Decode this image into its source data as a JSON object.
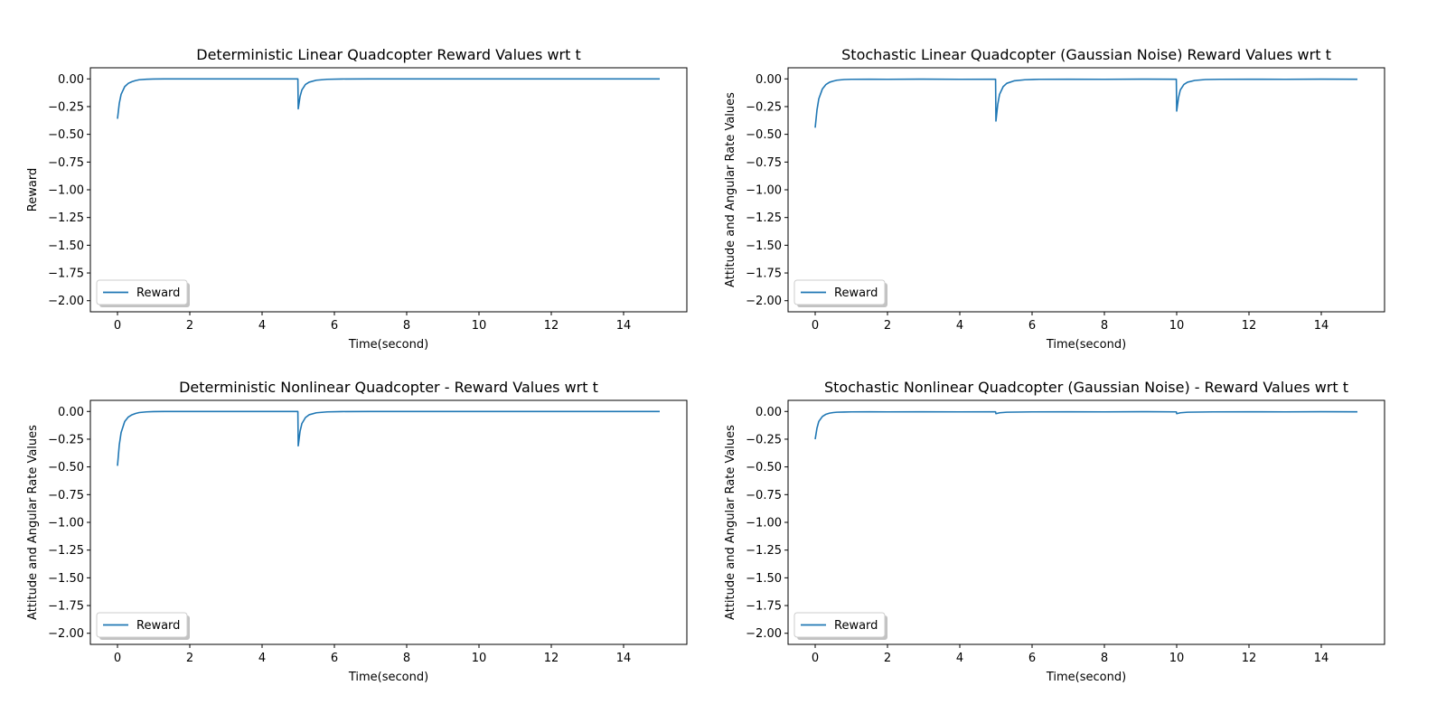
{
  "chart_data": [
    {
      "type": "line",
      "title": "Deterministic Linear Quadcopter Reward Values wrt t",
      "xlabel": "Time(second)",
      "ylabel": "Reward",
      "xlim": [
        -0.75,
        15.75
      ],
      "ylim": [
        -2.1,
        0.1
      ],
      "xticks": [
        "0",
        "2",
        "4",
        "6",
        "8",
        "10",
        "12",
        "14"
      ],
      "yticks": [
        "0.00",
        "−0.25",
        "−0.50",
        "−0.75",
        "−1.00",
        "−1.25",
        "−1.50",
        "−1.75",
        "−2.00"
      ],
      "legend": {
        "position": "lower left",
        "entries": [
          "Reward"
        ]
      },
      "grid": false,
      "series": [
        {
          "name": "Reward",
          "color": "#1f77b4",
          "x": [
            0,
            0.05,
            0.1,
            0.2,
            0.3,
            0.4,
            0.5,
            0.6,
            0.8,
            1.0,
            1.3,
            2.0,
            4.99,
            5.0,
            5.05,
            5.1,
            5.2,
            5.3,
            5.5,
            5.8,
            6.2,
            7.0,
            10.0,
            15.0
          ],
          "y": [
            -0.36,
            -0.22,
            -0.14,
            -0.07,
            -0.04,
            -0.025,
            -0.015,
            -0.008,
            -0.003,
            -0.001,
            0,
            0,
            0,
            -0.27,
            -0.16,
            -0.1,
            -0.05,
            -0.03,
            -0.012,
            -0.004,
            -0.001,
            0,
            0,
            0
          ]
        }
      ]
    },
    {
      "type": "line",
      "title": "Stochastic Linear Quadcopter (Gaussian Noise) Reward Values wrt t",
      "xlabel": "Time(second)",
      "ylabel": "Attitude and Angular Rate Values",
      "xlim": [
        -0.75,
        15.75
      ],
      "ylim": [
        -2.1,
        0.1
      ],
      "xticks": [
        "0",
        "2",
        "4",
        "6",
        "8",
        "10",
        "12",
        "14"
      ],
      "yticks": [
        "0.00",
        "−0.25",
        "−0.50",
        "−0.75",
        "−1.00",
        "−1.25",
        "−1.50",
        "−1.75",
        "−2.00"
      ],
      "legend": {
        "position": "lower left",
        "entries": [
          "Reward"
        ]
      },
      "grid": false,
      "series": [
        {
          "name": "Reward",
          "color": "#1f77b4",
          "x": [
            0,
            0.05,
            0.1,
            0.2,
            0.3,
            0.4,
            0.5,
            0.6,
            0.8,
            1.0,
            1.5,
            2.0,
            3.0,
            4.0,
            4.99,
            5.0,
            5.05,
            5.1,
            5.2,
            5.3,
            5.5,
            5.8,
            6.2,
            7.0,
            8.0,
            9.0,
            9.99,
            10.0,
            10.05,
            10.1,
            10.2,
            10.3,
            10.5,
            10.8,
            11.2,
            12.0,
            13.0,
            14.0,
            15.0
          ],
          "y": [
            -0.44,
            -0.28,
            -0.18,
            -0.09,
            -0.05,
            -0.03,
            -0.02,
            -0.012,
            -0.006,
            -0.004,
            -0.003,
            -0.004,
            -0.002,
            -0.004,
            -0.003,
            -0.38,
            -0.23,
            -0.14,
            -0.07,
            -0.04,
            -0.018,
            -0.008,
            -0.004,
            -0.003,
            -0.004,
            -0.002,
            -0.003,
            -0.29,
            -0.17,
            -0.1,
            -0.05,
            -0.03,
            -0.014,
            -0.006,
            -0.004,
            -0.003,
            -0.004,
            -0.002,
            -0.003
          ]
        }
      ]
    },
    {
      "type": "line",
      "title": "Deterministic Nonlinear Quadcopter - Reward Values wrt t",
      "xlabel": "Time(second)",
      "ylabel": "Attitude and Angular Rate Values",
      "xlim": [
        -0.75,
        15.75
      ],
      "ylim": [
        -2.1,
        0.1
      ],
      "xticks": [
        "0",
        "2",
        "4",
        "6",
        "8",
        "10",
        "12",
        "14"
      ],
      "yticks": [
        "0.00",
        "−0.25",
        "−0.50",
        "−0.75",
        "−1.00",
        "−1.25",
        "−1.50",
        "−1.75",
        "−2.00"
      ],
      "legend": {
        "position": "lower left",
        "entries": [
          "Reward"
        ]
      },
      "grid": false,
      "series": [
        {
          "name": "Reward",
          "color": "#1f77b4",
          "x": [
            0,
            0.05,
            0.1,
            0.2,
            0.3,
            0.4,
            0.5,
            0.6,
            0.8,
            1.0,
            1.3,
            2.0,
            4.99,
            5.0,
            5.05,
            5.1,
            5.2,
            5.3,
            5.5,
            5.8,
            6.2,
            7.0,
            10.0,
            15.0
          ],
          "y": [
            -0.49,
            -0.3,
            -0.19,
            -0.09,
            -0.05,
            -0.03,
            -0.018,
            -0.01,
            -0.004,
            -0.001,
            0,
            0,
            0,
            -0.31,
            -0.18,
            -0.11,
            -0.055,
            -0.03,
            -0.012,
            -0.004,
            -0.001,
            0,
            0,
            0
          ]
        }
      ]
    },
    {
      "type": "line",
      "title": "Stochastic Nonlinear Quadcopter (Gaussian Noise) - Reward Values wrt t",
      "xlabel": "Time(second)",
      "ylabel": "Attitude and Angular Rate Values",
      "xlim": [
        -0.75,
        15.75
      ],
      "ylim": [
        -2.1,
        0.1
      ],
      "xticks": [
        "0",
        "2",
        "4",
        "6",
        "8",
        "10",
        "12",
        "14"
      ],
      "yticks": [
        "0.00",
        "−0.25",
        "−0.50",
        "−0.75",
        "−1.00",
        "−1.25",
        "−1.50",
        "−1.75",
        "−2.00"
      ],
      "legend": {
        "position": "lower left",
        "entries": [
          "Reward"
        ]
      },
      "grid": false,
      "series": [
        {
          "name": "Reward",
          "color": "#1f77b4",
          "x": [
            0,
            0.05,
            0.1,
            0.2,
            0.3,
            0.4,
            0.5,
            0.6,
            0.8,
            1.0,
            1.5,
            2.0,
            3.0,
            4.0,
            4.99,
            5.0,
            5.1,
            5.3,
            6.0,
            7.0,
            8.0,
            9.0,
            9.99,
            10.0,
            10.1,
            10.3,
            11.0,
            12.0,
            13.0,
            14.0,
            15.0
          ],
          "y": [
            -0.25,
            -0.15,
            -0.09,
            -0.045,
            -0.025,
            -0.015,
            -0.01,
            -0.007,
            -0.005,
            -0.004,
            -0.003,
            -0.004,
            -0.003,
            -0.004,
            -0.003,
            -0.02,
            -0.012,
            -0.007,
            -0.004,
            -0.003,
            -0.004,
            -0.002,
            -0.004,
            -0.02,
            -0.012,
            -0.007,
            -0.004,
            -0.003,
            -0.004,
            -0.002,
            -0.003
          ]
        }
      ]
    }
  ]
}
